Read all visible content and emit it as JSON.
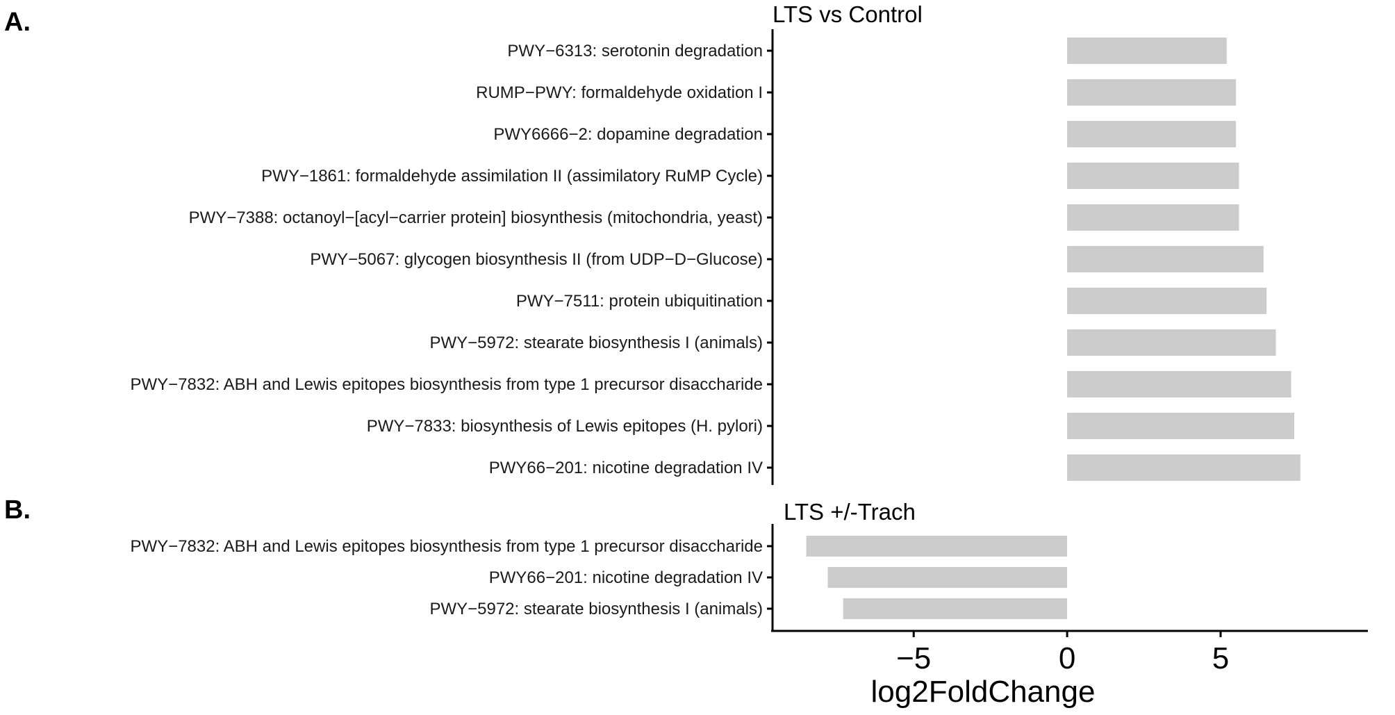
{
  "chart_data": [
    {
      "panel_label": "A.",
      "title": "LTS vs Control",
      "type": "bar",
      "orientation": "horizontal",
      "categories": [
        "PWY−6313: serotonin degradation",
        "RUMP−PWY: formaldehyde oxidation I",
        "PWY6666−2: dopamine degradation",
        "PWY−1861: formaldehyde assimilation II (assimilatory RuMP Cycle)",
        "PWY−7388: octanoyl−[acyl−carrier protein] biosynthesis (mitochondria, yeast)",
        "PWY−5067: glycogen biosynthesis II (from UDP−D−Glucose)",
        "PWY−7511: protein ubiquitination",
        "PWY−5972: stearate biosynthesis I (animals)",
        "PWY−7832: ABH and Lewis epitopes biosynthesis from type 1 precursor disaccharide",
        "PWY−7833: biosynthesis of Lewis epitopes (H. pylori)",
        "PWY66−201: nicotine degradation IV"
      ],
      "values": [
        5.2,
        5.5,
        5.5,
        5.6,
        5.6,
        6.4,
        6.5,
        6.8,
        7.3,
        7.4,
        7.6
      ],
      "bar_color": "#cccccc"
    },
    {
      "panel_label": "B.",
      "title": "LTS +/-Trach",
      "type": "bar",
      "orientation": "horizontal",
      "categories": [
        "PWY−7832: ABH and Lewis epitopes biosynthesis from type 1 precursor disaccharide",
        "PWY66−201: nicotine degradation IV",
        "PWY−5972: stearate biosynthesis I (animals)"
      ],
      "values": [
        -8.5,
        -7.8,
        -7.3
      ],
      "bar_color": "#cccccc"
    }
  ],
  "x_axis": {
    "label": "log2FoldChange",
    "range": [
      -9.6,
      9.8
    ],
    "ticks": [
      -5,
      0,
      5
    ],
    "tick_labels": [
      "−5",
      "0",
      "5"
    ]
  }
}
